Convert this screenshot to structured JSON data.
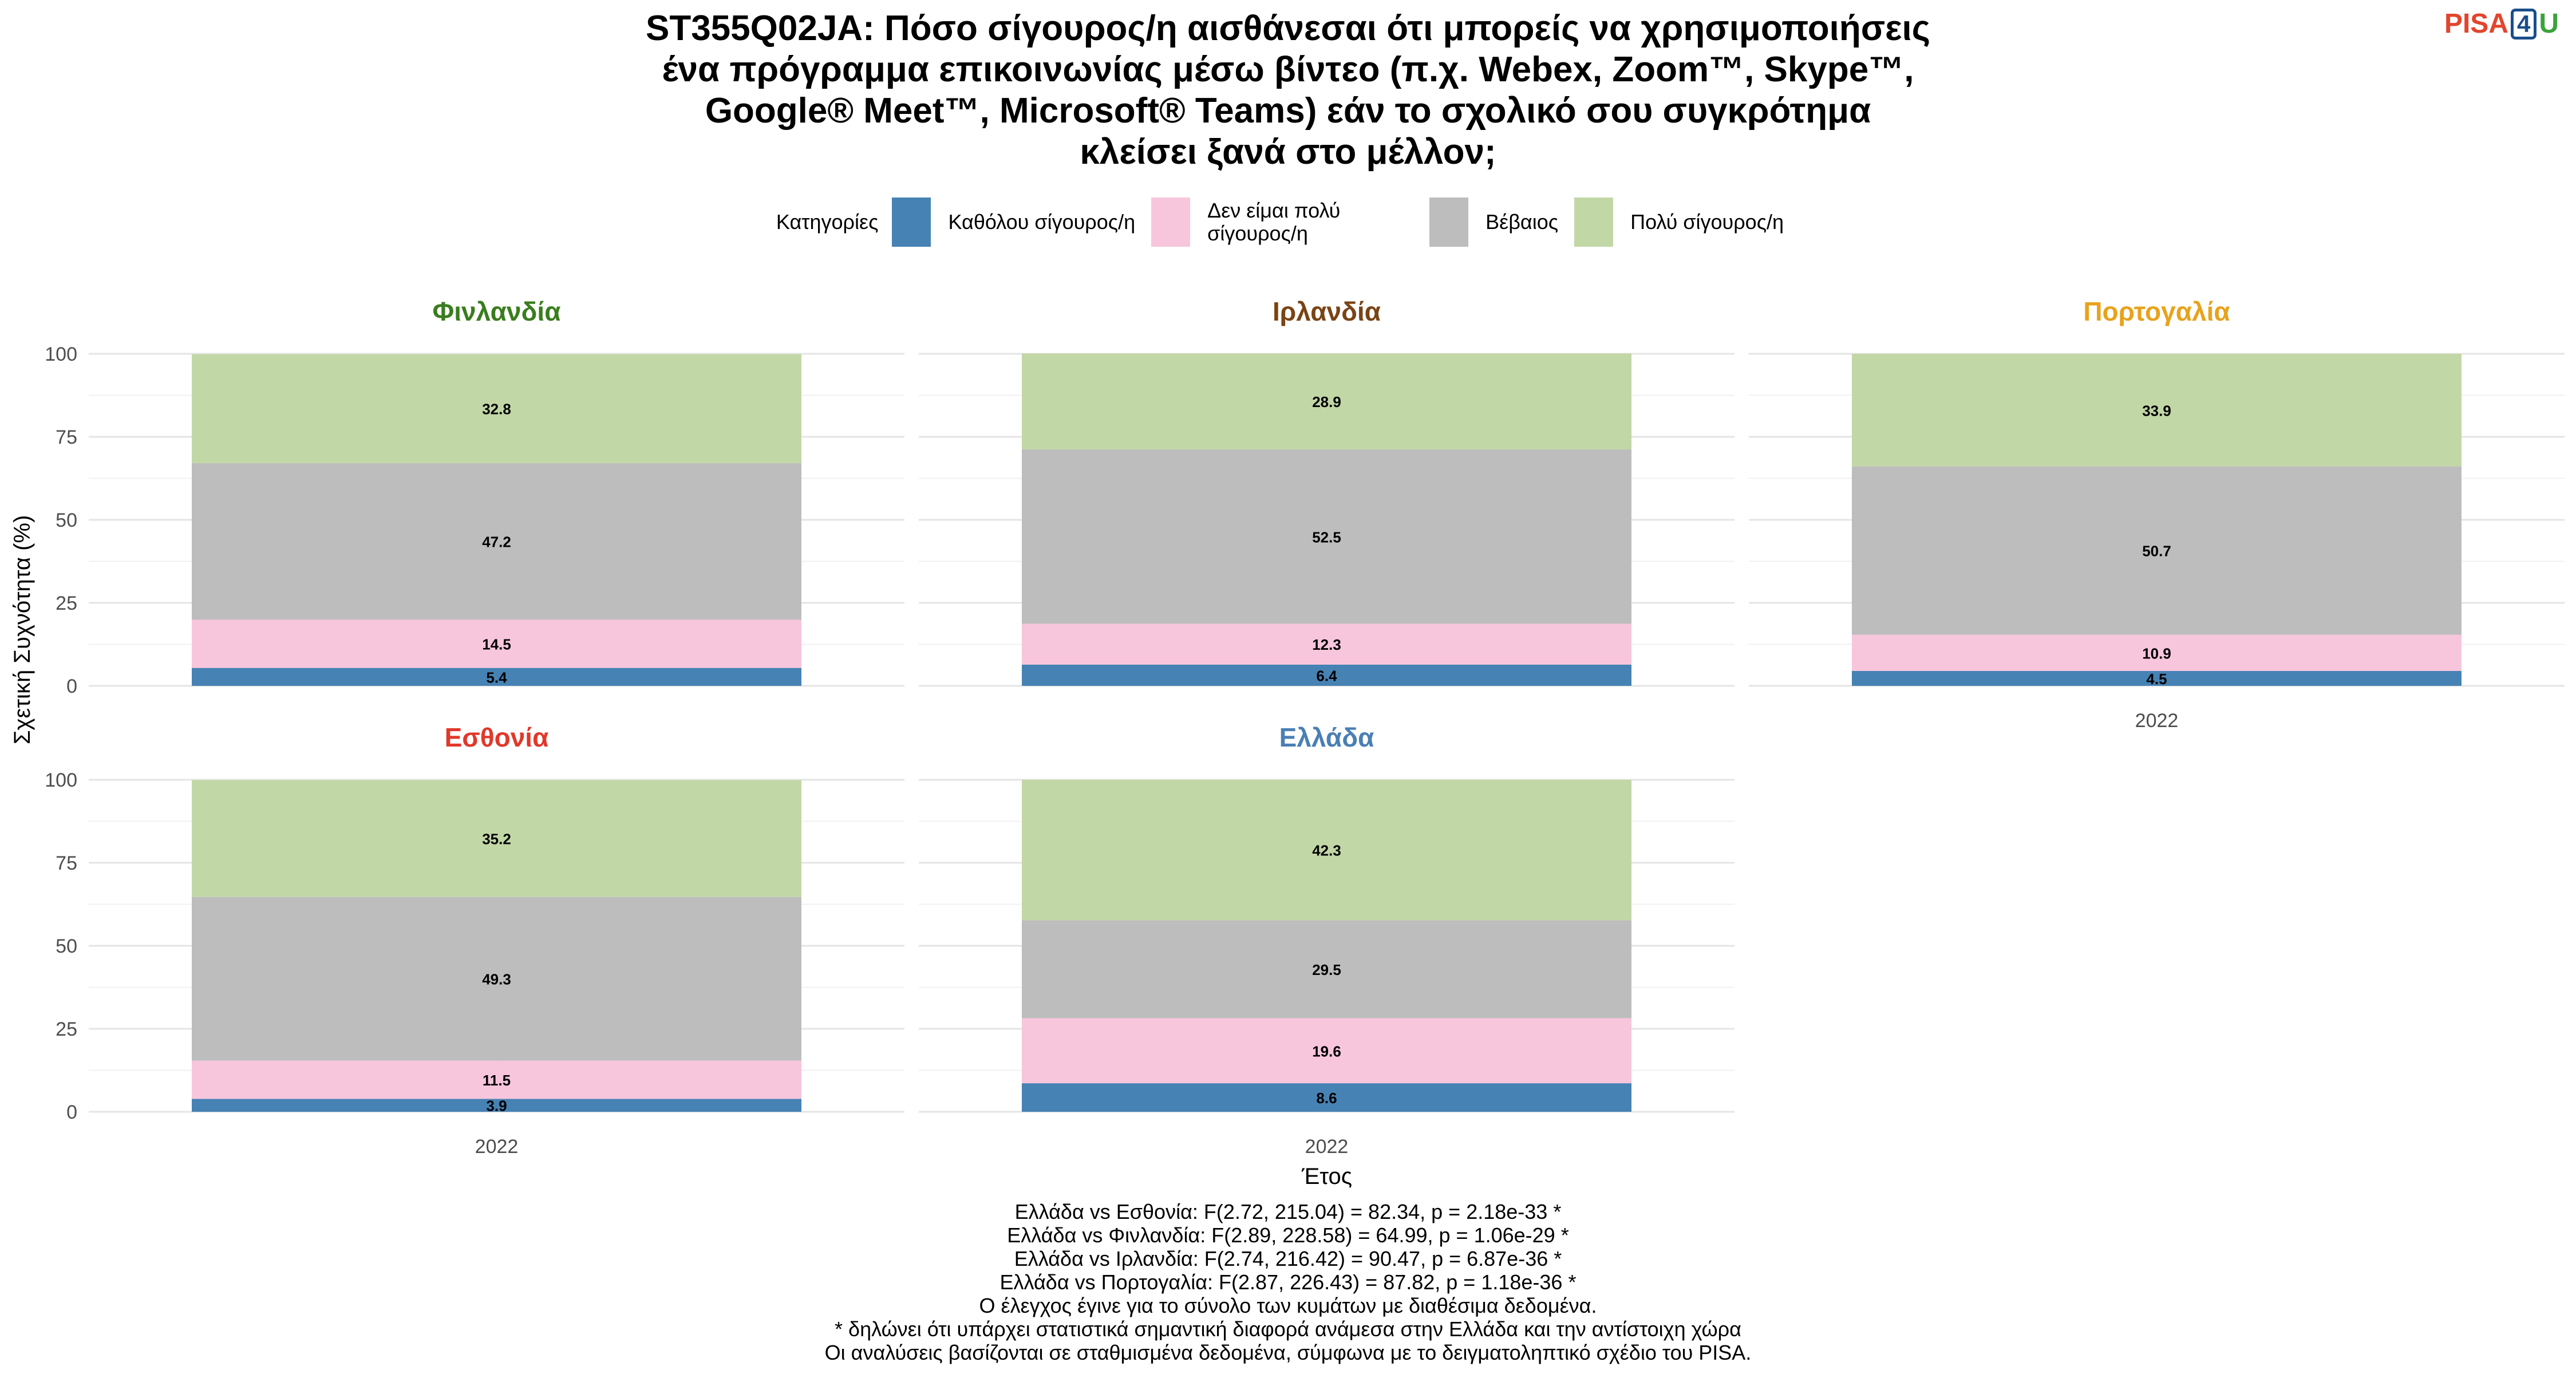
{
  "title_lines": [
    "ST355Q02JA: Πόσο σίγουρος/η αισθάνεσαι ότι μπορείς να χρησιμοποιήσεις",
    "ένα πρόγραμμα επικοινωνίας μέσω βίντεο (π.χ. Webex, Zoom™, Skype™,",
    "Google® Meet™, Microsoft® Teams) εάν το σχολικό σου συγκρότημα",
    "κλείσει ξανά στο μέλλον;"
  ],
  "logo": {
    "part1": "PISA",
    "part2": "4",
    "part3": "U"
  },
  "legend": {
    "title": "Κατηγορίες",
    "items": [
      {
        "label": "Καθόλου σίγουρος/η",
        "color": "#4682b4"
      },
      {
        "label": "Δεν είμαι πολύ σίγουρος/η",
        "color": "#f7c6dc"
      },
      {
        "label": "Βέβαιος",
        "color": "#bdbdbd"
      },
      {
        "label": "Πολύ σίγουρος/η",
        "color": "#c2d7a6"
      }
    ]
  },
  "chart_data": {
    "type": "bar",
    "stacked": true,
    "ylabel": "Σχετική Συχνότητα (%)",
    "xlabel": "Έτος",
    "ylim": [
      0,
      100
    ],
    "yticks": [
      0,
      25,
      50,
      75,
      100
    ],
    "series_names": [
      "Καθόλου σίγουρος/η",
      "Δεν είμαι πολύ σίγουρος/η",
      "Βέβαιος",
      "Πολύ σίγουρος/η"
    ],
    "series_colors": [
      "#4682b4",
      "#f7c6dc",
      "#bdbdbd",
      "#c2d7a6"
    ],
    "facets": [
      {
        "country": "Φινλανδία",
        "title_color": "#3a7d1e",
        "x": "2022",
        "values": [
          5.4,
          14.5,
          47.2,
          32.8
        ],
        "show_x_label": false
      },
      {
        "country": "Ιρλανδία",
        "title_color": "#7a4416",
        "x": "2022",
        "values": [
          6.4,
          12.3,
          52.5,
          28.9
        ],
        "show_x_label": false
      },
      {
        "country": "Πορτογαλία",
        "title_color": "#e8a21c",
        "x": "2022",
        "values": [
          4.5,
          10.9,
          50.7,
          33.9
        ],
        "show_x_label": true
      },
      {
        "country": "Εσθονία",
        "title_color": "#e0382a",
        "x": "2022",
        "values": [
          3.9,
          11.5,
          49.3,
          35.2
        ],
        "show_x_label": true
      },
      {
        "country": "Ελλάδα",
        "title_color": "#4a7fb5",
        "x": "2022",
        "values": [
          8.6,
          19.6,
          29.5,
          42.3
        ],
        "show_x_label": true
      }
    ]
  },
  "footnotes": [
    "Ελλάδα vs Εσθονία: F(2.72, 215.04) = 82.34, p = 2.18e-33 *",
    "Ελλάδα vs Φινλανδία: F(2.89, 228.58) = 64.99, p = 1.06e-29 *",
    "Ελλάδα vs Ιρλανδία: F(2.74, 216.42) = 90.47, p = 6.87e-36 *",
    "Ελλάδα vs Πορτογαλία: F(2.87, 226.43) = 87.82, p = 1.18e-36 *",
    "Ο έλεγχος έγινε για το σύνολο των κυμάτων με διαθέσιμα δεδομένα.",
    "* δηλώνει ότι υπάρχει στατιστικά σημαντική διαφορά ανάμεσα στην Ελλάδα και την αντίστοιχη χώρα",
    "Οι αναλύσεις βασίζονται σε σταθμισμένα δεδομένα, σύμφωνα με το δειγματοληπτικό σχέδιο του PISA."
  ]
}
